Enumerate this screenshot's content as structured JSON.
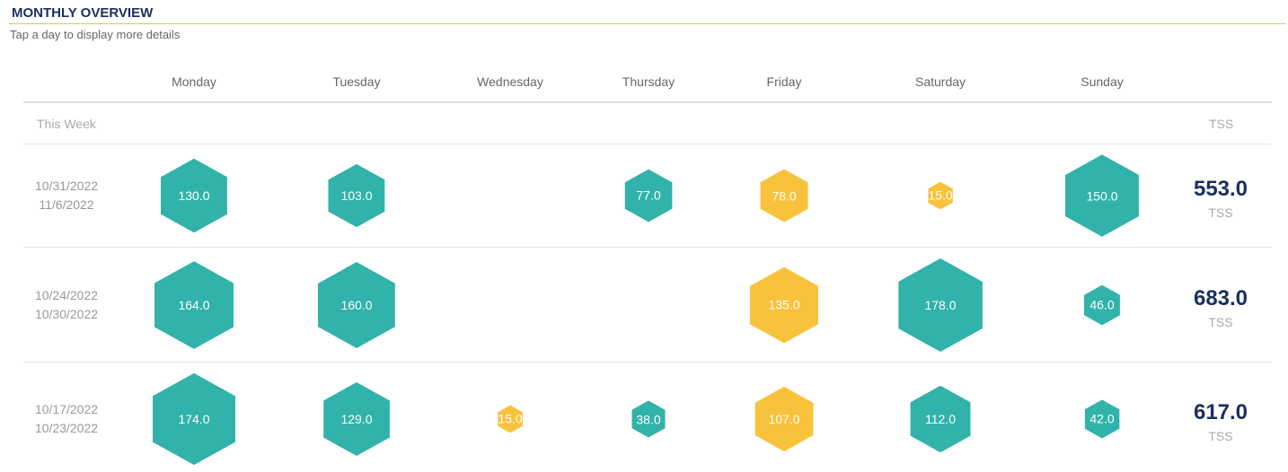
{
  "title": "MONTHLY OVERVIEW",
  "subtitle": "Tap a day to display more details",
  "days": [
    "Monday",
    "Tuesday",
    "Wednesday",
    "Thursday",
    "Friday",
    "Saturday",
    "Sunday"
  ],
  "this_week_label": "This Week",
  "tss_header": "TSS",
  "colors": {
    "completed": "#31b2aa",
    "planned": "#f8c23c"
  },
  "weeks": [
    {
      "start": "10/31/2022",
      "end": "11/6/2022",
      "total": "553.0",
      "unit": "TSS",
      "days": [
        {
          "v": "130.0",
          "c": "completed"
        },
        {
          "v": "103.0",
          "c": "completed"
        },
        null,
        {
          "v": "77.0",
          "c": "completed"
        },
        {
          "v": "78.0",
          "c": "planned"
        },
        {
          "v": "15.0",
          "c": "planned"
        },
        {
          "v": "150.0",
          "c": "completed"
        }
      ]
    },
    {
      "start": "10/24/2022",
      "end": "10/30/2022",
      "total": "683.0",
      "unit": "TSS",
      "days": [
        {
          "v": "164.0",
          "c": "completed"
        },
        {
          "v": "160.0",
          "c": "completed"
        },
        null,
        null,
        {
          "v": "135.0",
          "c": "planned"
        },
        {
          "v": "178.0",
          "c": "completed"
        },
        {
          "v": "46.0",
          "c": "completed"
        }
      ]
    },
    {
      "start": "10/17/2022",
      "end": "10/23/2022",
      "total": "617.0",
      "unit": "TSS",
      "days": [
        {
          "v": "174.0",
          "c": "completed"
        },
        {
          "v": "129.0",
          "c": "completed"
        },
        {
          "v": "15.0",
          "c": "planned"
        },
        {
          "v": "38.0",
          "c": "completed"
        },
        {
          "v": "107.0",
          "c": "planned"
        },
        {
          "v": "112.0",
          "c": "completed"
        },
        {
          "v": "42.0",
          "c": "completed"
        }
      ]
    }
  ]
}
